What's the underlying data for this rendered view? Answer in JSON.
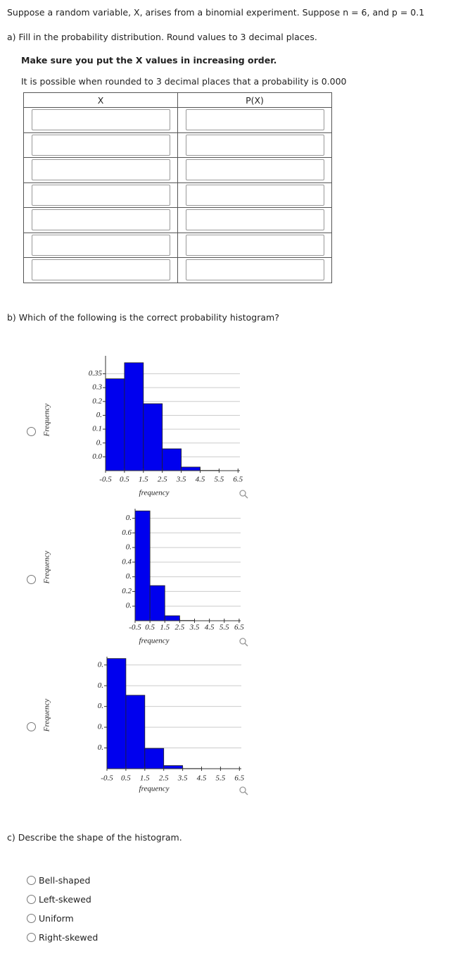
{
  "question": "Suppose a random variable, X, arises from a binomial experiment. Suppose n = 6, and p = 0.1",
  "part_a": {
    "prompt": "a) Fill in the probability distribution. Round values to 3 decimal places.",
    "note1": "Make sure you put the X values in increasing order.",
    "note2": "It is possible when rounded to 3 decimal places that a probability is 0.000",
    "columns": [
      "X",
      "P(X)"
    ]
  },
  "part_b": {
    "prompt": "b) Which of the following is the correct probability histogram?",
    "options": [
      {
        "type": "histogram",
        "y_label": "Frequency",
        "x_label": "frequency",
        "color": "#0000ee",
        "xlim": [
          -0.5,
          6.6
        ],
        "ylim": [
          0,
          0.415
        ],
        "xticks": [
          -0.5,
          0.5,
          1.5,
          2.5,
          3.5,
          4.5,
          5.5,
          6.5
        ],
        "yticks": [
          0.35,
          0.3,
          {
            "value": 0.25,
            "label": "0.2"
          },
          {
            "value": 0.2,
            "label": "0."
          },
          {
            "value": 0.15,
            "label": "0.1"
          },
          {
            "value": 0.1,
            "label": "0."
          },
          {
            "value": 0.05,
            "label": "0.0"
          }
        ],
        "bins": [
          -0.5,
          0.5,
          1.5,
          2.5,
          3.5,
          4.5,
          5.5,
          6.5
        ],
        "values": [
          0.332,
          0.39,
          0.242,
          0.079,
          0.013,
          0.001,
          0
        ]
      },
      {
        "type": "histogram",
        "y_label": "Frequency",
        "x_label": "frequency",
        "color": "#0000ee",
        "xlim": [
          -0.5,
          6.6
        ],
        "ylim": [
          0,
          0.765
        ],
        "xticks": [
          -0.5,
          0.5,
          1.5,
          2.5,
          3.5,
          4.5,
          5.5,
          6.5
        ],
        "yticks": [
          {
            "value": 0.7,
            "label": "0."
          },
          {
            "value": 0.6,
            "label": "0.6"
          },
          {
            "value": 0.5,
            "label": "0."
          },
          {
            "value": 0.4,
            "label": "0.4"
          },
          {
            "value": 0.3,
            "label": "0."
          },
          {
            "value": 0.2,
            "label": "0.2"
          },
          {
            "value": 0.1,
            "label": "0."
          }
        ],
        "bins": [
          -0.5,
          0.5,
          1.5,
          2.5,
          3.5,
          4.5,
          5.5,
          6.5
        ],
        "values": [
          0.75,
          0.24,
          0.034,
          0.002,
          0,
          0,
          0
        ]
      },
      {
        "type": "histogram",
        "y_label": "Frequency",
        "x_label": "frequency",
        "color": "#0000ee",
        "xlim": [
          -0.5,
          6.6
        ],
        "ylim": [
          0,
          0.54
        ],
        "xticks": [
          -0.5,
          0.5,
          1.5,
          2.5,
          3.5,
          4.5,
          5.5,
          6.5
        ],
        "yticks": [
          {
            "value": 0.5,
            "label": "0."
          },
          {
            "value": 0.4,
            "label": "0."
          },
          {
            "value": 0.3,
            "label": "0."
          },
          {
            "value": 0.2,
            "label": "0."
          },
          {
            "value": 0.1,
            "label": "0."
          }
        ],
        "bins": [
          -0.5,
          0.5,
          1.5,
          2.5,
          3.5,
          4.5,
          5.5,
          6.5
        ],
        "values": [
          0.531,
          0.354,
          0.098,
          0.015,
          0.001,
          0,
          0
        ]
      }
    ]
  },
  "part_c": {
    "prompt": "c) Describe the shape of the histogram.",
    "options": [
      "Bell-shaped",
      "Left-skewed",
      "Uniform",
      "Right-skewed"
    ]
  }
}
